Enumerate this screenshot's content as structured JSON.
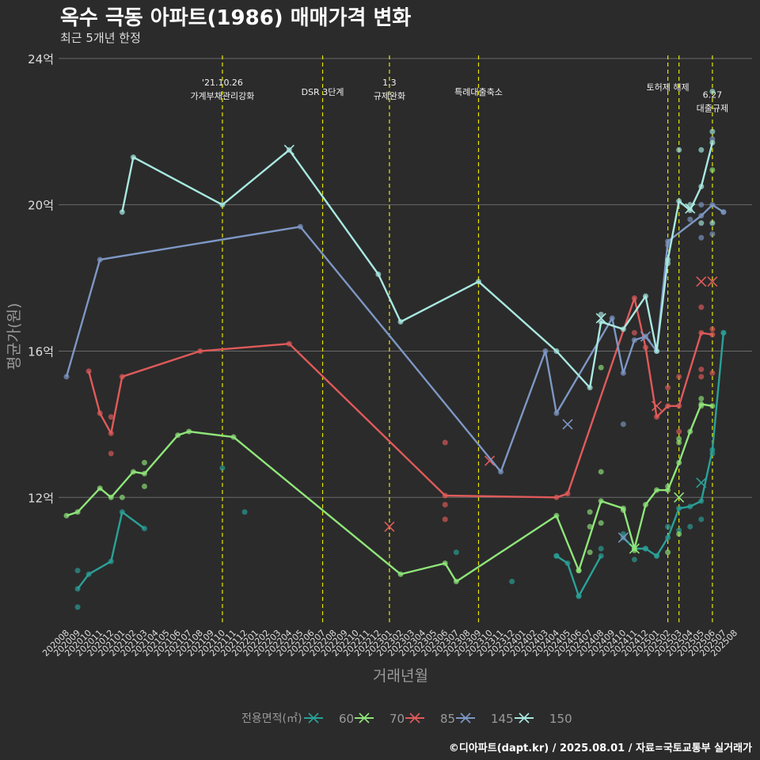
{
  "title": "옥수 극동 아파트(1986) 매매가격 변화",
  "subtitle": "최근 5개년 한정",
  "footer": "©디아파트(dapt.kr) / 2025.08.01 / 자료=국토교통부 실거래가",
  "chart_data": {
    "type": "line",
    "xlabel": "거래년월",
    "ylabel": "평균가(원)",
    "legend_title": "전용면적(㎡)",
    "legend_position": "bottom",
    "grid": true,
    "months": [
      "202008",
      "202009",
      "202010",
      "202011",
      "202012",
      "202101",
      "202102",
      "202103",
      "202104",
      "202105",
      "202106",
      "202107",
      "202108",
      "202109",
      "202110",
      "202111",
      "202112",
      "202201",
      "202202",
      "202203",
      "202204",
      "202205",
      "202206",
      "202207",
      "202208",
      "202209",
      "202210",
      "202211",
      "202212",
      "202301",
      "202302",
      "202303",
      "202304",
      "202305",
      "202306",
      "202307",
      "202308",
      "202309",
      "202310",
      "202311",
      "202312",
      "202401",
      "202402",
      "202403",
      "202404",
      "202405",
      "202406",
      "202407",
      "202408",
      "202409",
      "202410",
      "202411",
      "202412",
      "202501",
      "202502",
      "202503",
      "202504",
      "202505",
      "202506",
      "202507",
      "202508"
    ],
    "ylim": [
      8.5,
      24.3
    ],
    "yticks": [
      12,
      16,
      20,
      24
    ],
    "ytick_labels": [
      "12억",
      "16억",
      "20억",
      "24억"
    ],
    "events": [
      {
        "month": "202110",
        "label": [
          "'21.10.26",
          "가계부채관리강화"
        ],
        "level": 1
      },
      {
        "month": "202207",
        "label": [
          "DSR 3단계"
        ],
        "level": 2
      },
      {
        "month": "202301",
        "label": [
          "1.3",
          "규제완화"
        ],
        "level": 1
      },
      {
        "month": "202309",
        "label": [
          "특례대출축소"
        ],
        "level": 2
      },
      {
        "month": "202502",
        "label": [
          "토허제 해제"
        ],
        "level": 1.5
      },
      {
        "month": "202503",
        "label": [],
        "level": 0
      },
      {
        "month": "202506",
        "label": [
          "6.27",
          "대출규제"
        ],
        "level": 2.3
      }
    ],
    "series": [
      {
        "name": "60",
        "color": "#2aa198",
        "line": [
          [
            "202009",
            9.5
          ],
          [
            "202010",
            9.9
          ],
          [
            "202012",
            10.25
          ],
          [
            "202101",
            11.6
          ],
          [
            "202103",
            11.15
          ]
        ],
        "points": [
          [
            "202009",
            9.0
          ],
          [
            "202009",
            10.0
          ],
          [
            "202110",
            12.8
          ],
          [
            "202112",
            11.6
          ],
          [
            "202307",
            10.5
          ],
          [
            "202312",
            9.7
          ],
          [
            "202404",
            10.4
          ],
          [
            "202406",
            9.3
          ],
          [
            "202408",
            10.6
          ],
          [
            "202410",
            11.0
          ],
          [
            "202411",
            10.3
          ],
          [
            "202412",
            10.6
          ],
          [
            "202501",
            10.4
          ],
          [
            "202502",
            11.2
          ],
          [
            "202503",
            11.1
          ],
          [
            "202504",
            11.2
          ],
          [
            "202505",
            11.4
          ],
          [
            "202506",
            13.2
          ],
          [
            "202507",
            16.5
          ]
        ],
        "crosses": [
          [
            "202505",
            12.4
          ]
        ],
        "line2": [
          [
            "202404",
            10.4
          ],
          [
            "202405",
            10.2
          ],
          [
            "202406",
            9.3
          ],
          [
            "202408",
            10.4
          ]
        ],
        "line3": [
          [
            "202410",
            10.9
          ],
          [
            "202411",
            10.6
          ],
          [
            "202412",
            10.6
          ],
          [
            "202501",
            10.4
          ],
          [
            "202502",
            10.9
          ],
          [
            "202503",
            11.7
          ],
          [
            "202504",
            11.75
          ],
          [
            "202505",
            11.9
          ],
          [
            "202506",
            13.3
          ],
          [
            "202507",
            16.5
          ]
        ]
      },
      {
        "name": "70",
        "color": "#8fe57a",
        "line": [
          [
            "202008",
            11.5
          ],
          [
            "202009",
            11.6
          ],
          [
            "202011",
            12.25
          ],
          [
            "202012",
            12.0
          ],
          [
            "202102",
            12.7
          ],
          [
            "202103",
            12.65
          ],
          [
            "202106",
            13.7
          ],
          [
            "202107",
            13.8
          ],
          [
            "202111",
            13.65
          ],
          [
            "202302",
            9.9
          ],
          [
            "202306",
            10.2
          ],
          [
            "202307",
            9.7
          ],
          [
            "202404",
            11.5
          ],
          [
            "202406",
            10.0
          ],
          [
            "202408",
            11.9
          ],
          [
            "202410",
            11.7
          ],
          [
            "202411",
            10.6
          ],
          [
            "202412",
            11.8
          ],
          [
            "202501",
            12.2
          ],
          [
            "202502",
            12.2
          ],
          [
            "202503",
            12.95
          ],
          [
            "202504",
            13.8
          ],
          [
            "202505",
            14.55
          ],
          [
            "202506",
            14.5
          ]
        ],
        "points": [
          [
            "202101",
            12.0
          ],
          [
            "202103",
            12.3
          ],
          [
            "202103",
            12.95
          ],
          [
            "202406",
            10.0
          ],
          [
            "202407",
            10.5
          ],
          [
            "202407",
            11.2
          ],
          [
            "202407",
            11.6
          ],
          [
            "202408",
            11.3
          ],
          [
            "202408",
            12.7
          ],
          [
            "202408",
            15.55
          ],
          [
            "202410",
            11.65
          ],
          [
            "202411",
            10.55
          ],
          [
            "202502",
            12.3
          ],
          [
            "202502",
            10.5
          ],
          [
            "202503",
            13.5
          ],
          [
            "202503",
            13.6
          ],
          [
            "202503",
            11.0
          ],
          [
            "202505",
            14.7
          ],
          [
            "202505",
            14.5
          ],
          [
            "202506",
            20.95
          ]
        ],
        "crosses": [
          [
            "202411",
            10.6
          ],
          [
            "202503",
            12.0
          ]
        ]
      },
      {
        "name": "85",
        "color": "#e05a5a",
        "line": [
          [
            "202010",
            15.45
          ],
          [
            "202011",
            14.3
          ],
          [
            "202012",
            13.75
          ],
          [
            "202101",
            15.3
          ],
          [
            "202108",
            16.0
          ],
          [
            "202204",
            16.2
          ],
          [
            "202306",
            12.05
          ],
          [
            "202404",
            12.0
          ],
          [
            "202405",
            12.1
          ],
          [
            "202411",
            17.45
          ],
          [
            "202412",
            16.1
          ],
          [
            "202501",
            14.2
          ],
          [
            "202502",
            14.5
          ],
          [
            "202503",
            14.5
          ],
          [
            "202505",
            16.5
          ],
          [
            "202506",
            16.45
          ]
        ],
        "points": [
          [
            "202012",
            14.2
          ],
          [
            "202012",
            13.2
          ],
          [
            "202306",
            13.5
          ],
          [
            "202306",
            11.8
          ],
          [
            "202306",
            11.4
          ],
          [
            "202411",
            16.5
          ],
          [
            "202502",
            15.0
          ],
          [
            "202503",
            15.3
          ],
          [
            "202503",
            13.8
          ],
          [
            "202505",
            17.2
          ],
          [
            "202505",
            15.5
          ],
          [
            "202505",
            15.3
          ],
          [
            "202506",
            16.6
          ],
          [
            "202506",
            15.4
          ]
        ],
        "crosses": [
          [
            "202301",
            11.2
          ],
          [
            "202310",
            13.0
          ],
          [
            "202501",
            14.5
          ],
          [
            "202505",
            17.9
          ],
          [
            "202506",
            17.9
          ]
        ]
      },
      {
        "name": "145",
        "color": "#7d97c4",
        "line": [
          [
            "202008",
            15.3
          ],
          [
            "202011",
            18.5
          ],
          [
            "202205",
            19.4
          ],
          [
            "202311",
            12.7
          ],
          [
            "202403",
            16.0
          ],
          [
            "202404",
            14.3
          ],
          [
            "202409",
            16.9
          ],
          [
            "202410",
            15.4
          ],
          [
            "202411",
            16.3
          ],
          [
            "202412",
            16.4
          ],
          [
            "202501",
            16.0
          ],
          [
            "202502",
            19.0
          ],
          [
            "202505",
            19.7
          ],
          [
            "202506",
            20.0
          ],
          [
            "202507",
            19.8
          ]
        ],
        "points": [
          [
            "202410",
            14.0
          ],
          [
            "202502",
            18.9
          ],
          [
            "202504",
            19.6
          ],
          [
            "202505",
            19.1
          ],
          [
            "202505",
            20.0
          ],
          [
            "202506",
            19.2
          ],
          [
            "202506",
            21.8
          ],
          [
            "202507",
            19.8
          ]
        ],
        "crosses": [
          [
            "202405",
            14.0
          ],
          [
            "202410",
            10.9
          ],
          [
            "202412",
            16.4
          ]
        ]
      },
      {
        "name": "150",
        "color": "#a8e8e0",
        "line": [
          [
            "202101",
            19.8
          ],
          [
            "202102",
            21.3
          ],
          [
            "202110",
            20.0
          ],
          [
            "202204",
            21.5
          ],
          [
            "202212",
            18.1
          ],
          [
            "202302",
            16.8
          ],
          [
            "202309",
            17.9
          ],
          [
            "202404",
            16.0
          ],
          [
            "202407",
            15.0
          ],
          [
            "202408",
            16.8
          ],
          [
            "202410",
            16.6
          ],
          [
            "202412",
            17.5
          ],
          [
            "202501",
            16.0
          ],
          [
            "202502",
            18.5
          ],
          [
            "202503",
            20.1
          ],
          [
            "202504",
            19.85
          ],
          [
            "202505",
            20.5
          ],
          [
            "202506",
            21.7
          ]
        ],
        "points": [
          [
            "202408",
            17.0
          ],
          [
            "202502",
            18.4
          ],
          [
            "202503",
            21.5
          ],
          [
            "202504",
            20.0
          ],
          [
            "202505",
            21.5
          ],
          [
            "202505",
            19.5
          ],
          [
            "202506",
            22.0
          ],
          [
            "202506",
            23.1
          ],
          [
            "202506",
            19.5
          ]
        ],
        "crosses": [
          [
            "202204",
            21.5
          ],
          [
            "202408",
            16.9
          ],
          [
            "202504",
            19.9
          ]
        ]
      }
    ]
  }
}
